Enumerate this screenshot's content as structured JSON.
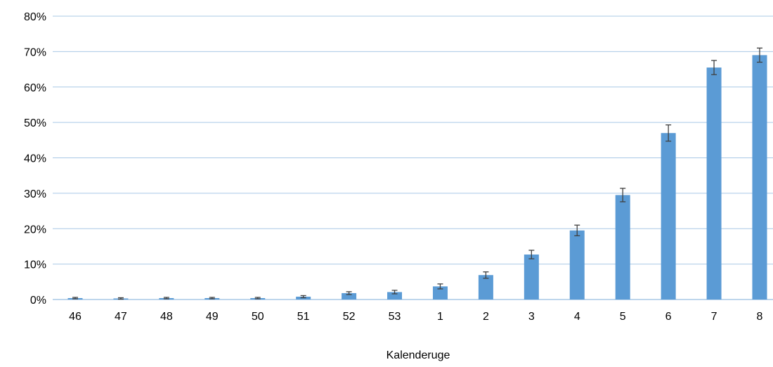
{
  "chart_data": {
    "type": "bar",
    "title": "",
    "xlabel": "Kalenderuge",
    "ylabel": "",
    "ylim": [
      0,
      80
    ],
    "y_ticks": [
      "0%",
      "10%",
      "20%",
      "30%",
      "40%",
      "50%",
      "60%",
      "70%",
      "80%"
    ],
    "grid": true,
    "categories": [
      "46",
      "47",
      "48",
      "49",
      "50",
      "51",
      "52",
      "53",
      "1",
      "2",
      "3",
      "4",
      "5",
      "6",
      "7",
      "8"
    ],
    "series": [
      {
        "values": [
          0.4,
          0.3,
          0.4,
          0.4,
          0.4,
          0.8,
          1.8,
          2.1,
          3.7,
          6.9,
          12.7,
          19.5,
          29.5,
          47.0,
          65.5,
          69.0
        ],
        "error_low": [
          0.2,
          0.2,
          0.2,
          0.2,
          0.2,
          0.3,
          0.4,
          0.5,
          0.7,
          0.9,
          1.2,
          1.5,
          1.9,
          2.3,
          2.0,
          2.0
        ],
        "error_high": [
          0.2,
          0.2,
          0.2,
          0.2,
          0.2,
          0.3,
          0.4,
          0.5,
          0.7,
          0.9,
          1.2,
          1.5,
          1.9,
          2.3,
          2.0,
          2.0
        ]
      }
    ],
    "colors": {
      "bar": "#5b9bd5",
      "grid": "#a9c8e6",
      "axis": "#a9c8e6",
      "error": "#404040"
    }
  }
}
